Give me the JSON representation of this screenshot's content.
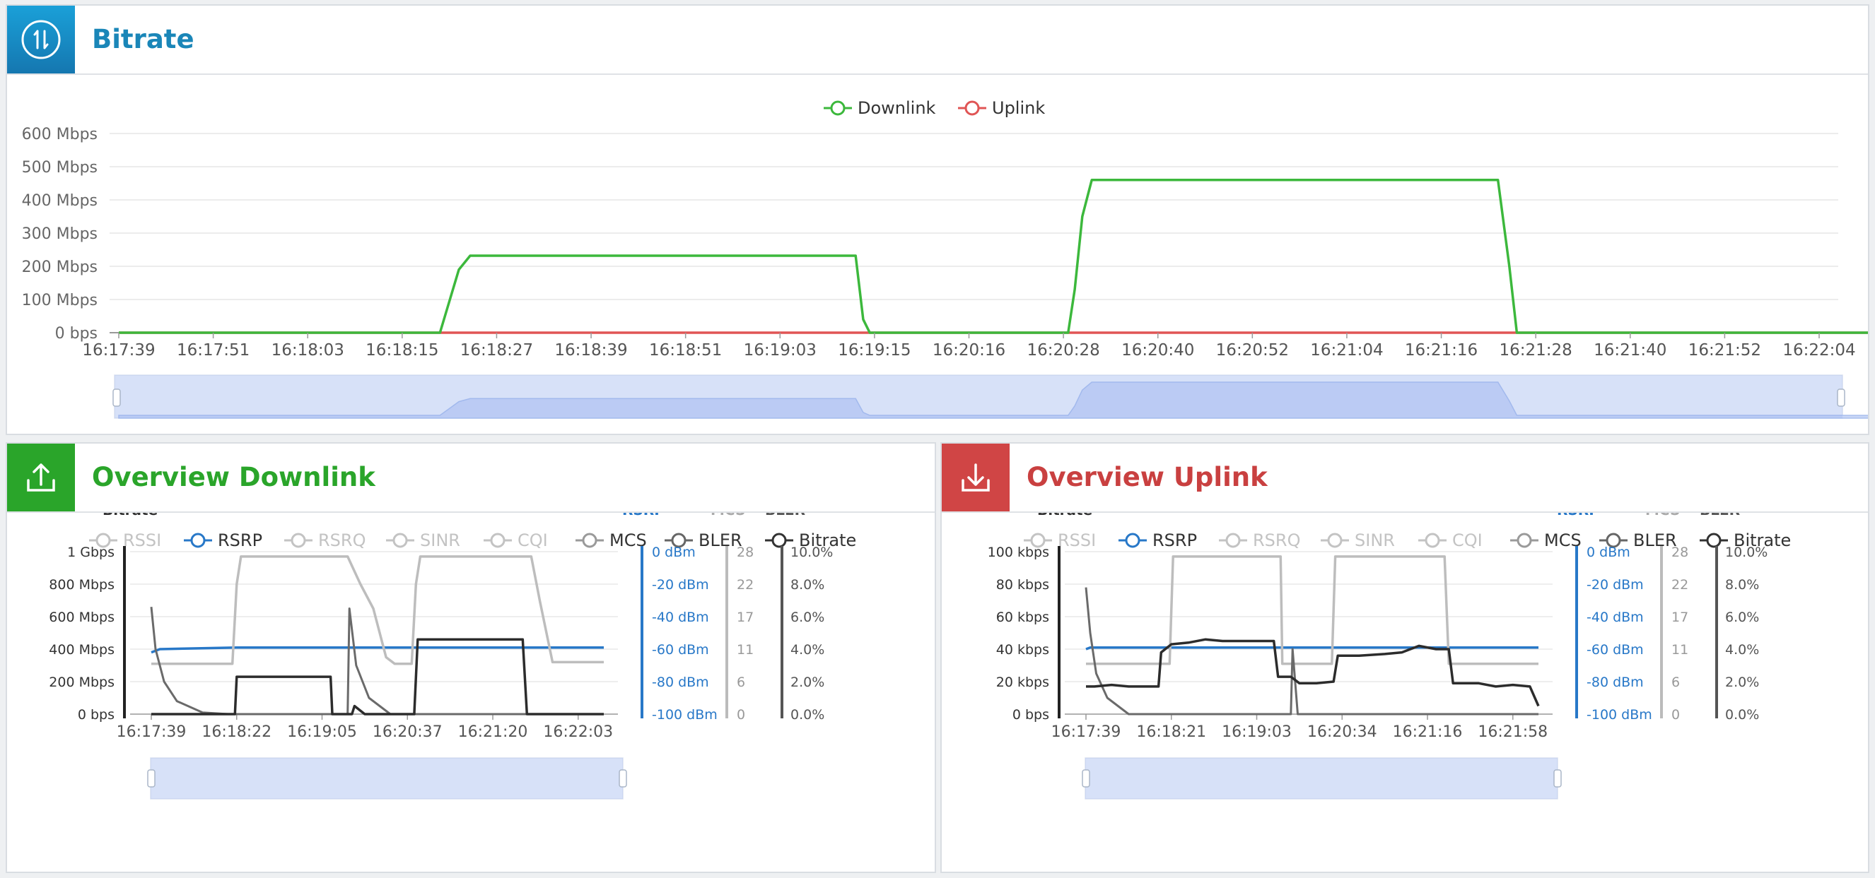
{
  "colors": {
    "downlink": "#3cb83c",
    "uplink": "#e05555",
    "rsrp": "#2878c8",
    "mcs": "#bdbdbd",
    "bler": "#666666",
    "bitrate": "#333333",
    "title_blue": "#1a86b8",
    "title_green": "#2aa52a",
    "title_red": "#c94040"
  },
  "bitrate_panel": {
    "title": "Bitrate",
    "icon": "up-down-arrows-icon",
    "legend": [
      "Downlink",
      "Uplink"
    ]
  },
  "downlink_panel": {
    "title": "Overview Downlink",
    "icon": "upload-icon",
    "legend": [
      "RSSI",
      "RSRP",
      "RSRQ",
      "SINR",
      "CQI",
      "MCS",
      "BLER",
      "Bitrate"
    ]
  },
  "uplink_panel": {
    "title": "Overview Uplink",
    "icon": "download-icon",
    "legend": [
      "RSSI",
      "RSRP",
      "RSRQ",
      "SINR",
      "CQI",
      "MCS",
      "BLER",
      "Bitrate"
    ]
  },
  "chart_data": [
    {
      "type": "line",
      "title": "",
      "x_ticks": [
        "16:17:39",
        "16:17:51",
        "16:18:03",
        "16:18:15",
        "16:18:27",
        "16:18:39",
        "16:18:51",
        "16:19:03",
        "16:19:15",
        "16:20:16",
        "16:20:28",
        "16:20:40",
        "16:20:52",
        "16:21:04",
        "16:21:16",
        "16:21:28",
        "16:21:40",
        "16:21:52",
        "16:22:04"
      ],
      "y_ticks": [
        "0 bps",
        "100 Mbps",
        "200 Mbps",
        "300 Mbps",
        "400 Mbps",
        "500 Mbps",
        "600 Mbps"
      ],
      "ylim": [
        0,
        600
      ],
      "series": [
        {
          "name": "Downlink",
          "points": [
            [
              0,
              0
            ],
            [
              3.4,
              0
            ],
            [
              3.6,
              190
            ],
            [
              3.72,
              232
            ],
            [
              7.8,
              232
            ],
            [
              7.88,
              40
            ],
            [
              7.95,
              0
            ],
            [
              10.05,
              0
            ],
            [
              10.12,
              130
            ],
            [
              10.2,
              350
            ],
            [
              10.3,
              460
            ],
            [
              14.6,
              460
            ],
            [
              14.72,
              200
            ],
            [
              14.8,
              0
            ],
            [
              18.9,
              0
            ]
          ]
        },
        {
          "name": "Uplink",
          "points": [
            [
              0,
              0
            ],
            [
              18.9,
              0
            ]
          ]
        }
      ],
      "legend": "top-center"
    },
    {
      "type": "line",
      "x_ticks": [
        "16:17:39",
        "16:18:22",
        "16:19:05",
        "16:20:37",
        "16:21:20",
        "16:22:03"
      ],
      "axes": {
        "Bitrate": [
          "0 bps",
          "200 Mbps",
          "400 Mbps",
          "600 Mbps",
          "800 Mbps",
          "1 Gbps"
        ],
        "RSRP": [
          "-100 dBm",
          "-80 dBm",
          "-60 dBm",
          "-40 dBm",
          "-20 dBm",
          "0 dBm"
        ],
        "MCS": [
          "0",
          "6",
          "11",
          "17",
          "22",
          "28"
        ],
        "BLER": [
          "0.0%",
          "2.0%",
          "4.0%",
          "6.0%",
          "8.0%",
          "10.0%"
        ]
      },
      "series": [
        {
          "name": "RSRP",
          "points": [
            [
              0,
              0.38
            ],
            [
              0.1,
              0.4
            ],
            [
              1,
              0.41
            ],
            [
              5.3,
              0.41
            ]
          ]
        },
        {
          "name": "MCS",
          "points": [
            [
              0,
              0.31
            ],
            [
              0.95,
              0.31
            ],
            [
              1.0,
              0.8
            ],
            [
              1.05,
              0.97
            ],
            [
              2.3,
              0.97
            ],
            [
              2.45,
              0.8
            ],
            [
              2.6,
              0.65
            ],
            [
              2.75,
              0.35
            ],
            [
              2.85,
              0.31
            ],
            [
              3.05,
              0.31
            ],
            [
              3.1,
              0.8
            ],
            [
              3.15,
              0.97
            ],
            [
              4.45,
              0.97
            ],
            [
              4.55,
              0.7
            ],
            [
              4.7,
              0.32
            ],
            [
              5.3,
              0.32
            ]
          ]
        },
        {
          "name": "BLER",
          "points": [
            [
              0,
              0.66
            ],
            [
              0.05,
              0.4
            ],
            [
              0.15,
              0.2
            ],
            [
              0.3,
              0.08
            ],
            [
              0.6,
              0.01
            ],
            [
              0.9,
              0
            ],
            [
              2.3,
              0
            ],
            [
              2.32,
              0.65
            ],
            [
              2.4,
              0.3
            ],
            [
              2.55,
              0.1
            ],
            [
              2.8,
              0
            ],
            [
              5.3,
              0
            ]
          ]
        },
        {
          "name": "Bitrate",
          "points": [
            [
              0,
              0
            ],
            [
              0.98,
              0
            ],
            [
              1.0,
              0.23
            ],
            [
              2.1,
              0.23
            ],
            [
              2.12,
              0
            ],
            [
              2.35,
              0
            ],
            [
              2.38,
              0.05
            ],
            [
              2.5,
              0
            ],
            [
              3.08,
              0
            ],
            [
              3.12,
              0.46
            ],
            [
              4.35,
              0.46
            ],
            [
              4.4,
              0
            ],
            [
              5.3,
              0
            ]
          ]
        }
      ]
    },
    {
      "type": "line",
      "x_ticks": [
        "16:17:39",
        "16:18:21",
        "16:19:03",
        "16:20:34",
        "16:21:16",
        "16:21:58"
      ],
      "axes": {
        "Bitrate": [
          "0 bps",
          "20 kbps",
          "40 kbps",
          "60 kbps",
          "80 kbps",
          "100 kbps"
        ],
        "RSRP": [
          "-100 dBm",
          "-80 dBm",
          "-60 dBm",
          "-40 dBm",
          "-20 dBm",
          "0 dBm"
        ],
        "MCS": [
          "0",
          "6",
          "11",
          "17",
          "22",
          "28"
        ],
        "BLER": [
          "0.0%",
          "2.0%",
          "4.0%",
          "6.0%",
          "8.0%",
          "10.0%"
        ]
      },
      "series": [
        {
          "name": "RSRP",
          "points": [
            [
              0,
              0.4
            ],
            [
              0.05,
              0.41
            ],
            [
              5.3,
              0.41
            ]
          ]
        },
        {
          "name": "MCS",
          "points": [
            [
              0,
              0.31
            ],
            [
              0.98,
              0.31
            ],
            [
              1.02,
              0.97
            ],
            [
              2.28,
              0.97
            ],
            [
              2.3,
              0.31
            ],
            [
              2.88,
              0.31
            ],
            [
              2.92,
              0.97
            ],
            [
              4.2,
              0.97
            ],
            [
              4.25,
              0.31
            ],
            [
              5.3,
              0.31
            ]
          ]
        },
        {
          "name": "BLER",
          "points": [
            [
              0,
              0.78
            ],
            [
              0.05,
              0.5
            ],
            [
              0.12,
              0.25
            ],
            [
              0.25,
              0.1
            ],
            [
              0.5,
              0
            ],
            [
              1.2,
              0
            ],
            [
              2.4,
              0
            ],
            [
              2.42,
              0.4
            ],
            [
              2.48,
              0
            ],
            [
              5.3,
              0
            ]
          ]
        },
        {
          "name": "Bitrate",
          "points": [
            [
              0,
              0.17
            ],
            [
              0.1,
              0.17
            ],
            [
              0.3,
              0.18
            ],
            [
              0.5,
              0.17
            ],
            [
              0.85,
              0.17
            ],
            [
              0.88,
              0.38
            ],
            [
              1,
              0.43
            ],
            [
              1.2,
              0.44
            ],
            [
              1.4,
              0.46
            ],
            [
              1.6,
              0.45
            ],
            [
              2.2,
              0.45
            ],
            [
              2.25,
              0.23
            ],
            [
              2.4,
              0.23
            ],
            [
              2.5,
              0.19
            ],
            [
              2.7,
              0.19
            ],
            [
              2.9,
              0.2
            ],
            [
              2.95,
              0.36
            ],
            [
              3.2,
              0.36
            ],
            [
              3.5,
              0.37
            ],
            [
              3.7,
              0.38
            ],
            [
              3.9,
              0.42
            ],
            [
              4.1,
              0.4
            ],
            [
              4.25,
              0.4
            ],
            [
              4.3,
              0.19
            ],
            [
              4.6,
              0.19
            ],
            [
              4.8,
              0.17
            ],
            [
              5.0,
              0.18
            ],
            [
              5.2,
              0.17
            ],
            [
              5.3,
              0.05
            ]
          ]
        }
      ]
    }
  ]
}
